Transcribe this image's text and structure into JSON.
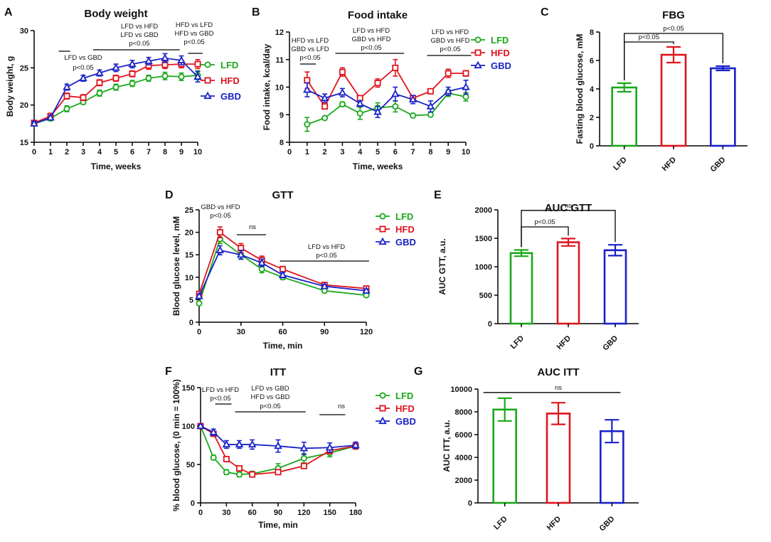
{
  "figure": {
    "colors": {
      "LFD": "#1aa81a",
      "HFD": "#e0141e",
      "GBD": "#1a22c8"
    }
  },
  "chart_data": [
    {
      "id": "A",
      "panel_label": "A",
      "type": "line",
      "title": "Body weight",
      "xlabel": "Time, weeks",
      "ylabel": "Body weight, g",
      "xlim": [
        0,
        10
      ],
      "ylim": [
        15,
        30
      ],
      "xticks": [
        "0",
        "1",
        "2",
        "3",
        "4",
        "5",
        "6",
        "7",
        "8",
        "9",
        "10"
      ],
      "yticks": [
        "15",
        "20",
        "25",
        "30"
      ],
      "ytick_values": [
        15,
        20,
        25,
        30
      ],
      "xtick_values": [
        0,
        1,
        2,
        3,
        4,
        5,
        6,
        7,
        8,
        9,
        10
      ],
      "series": [
        {
          "name": "LFD",
          "x": [
            0,
            1,
            2,
            3,
            4,
            5,
            6,
            7,
            8,
            9,
            10
          ],
          "values": [
            17.5,
            18.2,
            19.5,
            20.4,
            21.6,
            22.4,
            22.9,
            23.6,
            23.9,
            23.8,
            24.0
          ],
          "errors": [
            0.3,
            0.3,
            0.4,
            0.3,
            0.4,
            0.4,
            0.4,
            0.4,
            0.5,
            0.5,
            0.6
          ]
        },
        {
          "name": "HFD",
          "x": [
            0,
            1,
            2,
            3,
            4,
            5,
            6,
            7,
            8,
            9,
            10
          ],
          "values": [
            17.6,
            18.5,
            21.2,
            21.0,
            23.0,
            23.6,
            24.2,
            25.3,
            25.4,
            25.5,
            25.5
          ],
          "errors": [
            0.3,
            0.4,
            0.4,
            0.4,
            0.4,
            0.4,
            0.4,
            0.5,
            0.5,
            0.5,
            0.6
          ]
        },
        {
          "name": "GBD",
          "x": [
            0,
            1,
            2,
            3,
            4,
            5,
            6,
            7,
            8,
            9,
            10
          ],
          "values": [
            17.5,
            18.3,
            22.4,
            23.6,
            24.3,
            25.0,
            25.5,
            25.9,
            26.3,
            26.0,
            23.8
          ],
          "errors": [
            0.3,
            0.3,
            0.4,
            0.4,
            0.4,
            0.5,
            0.5,
            0.5,
            0.6,
            0.6,
            0.7
          ]
        }
      ],
      "annotations": [
        {
          "lines": [
            "LFD vs GBD",
            "p<0.05"
          ],
          "bar_x": [
            1.5,
            2.2
          ]
        },
        {
          "lines": [
            "LFD vs HFD",
            "LFD vs GBD",
            "p<0.05"
          ],
          "bar_x": [
            3.6,
            8.9
          ]
        },
        {
          "lines": [
            "HFD vs LFD",
            "HFD vs GBD",
            "p<0.05"
          ],
          "bar_x": [
            9.4,
            10.3
          ]
        }
      ],
      "legend": [
        "LFD",
        "HFD",
        "GBD"
      ],
      "legend_position": "right"
    },
    {
      "id": "B",
      "panel_label": "B",
      "type": "line",
      "title": "Food intake",
      "xlabel": "Time, weeks",
      "ylabel": "Food intake, kcal/day",
      "xlim": [
        0,
        10
      ],
      "ylim": [
        8,
        12
      ],
      "xticks": [
        "0",
        "1",
        "2",
        "3",
        "4",
        "5",
        "6",
        "7",
        "8",
        "9",
        "10"
      ],
      "yticks": [
        "8",
        "9",
        "10",
        "11",
        "12"
      ],
      "ytick_values": [
        8,
        9,
        10,
        11,
        12
      ],
      "xtick_values": [
        0,
        1,
        2,
        3,
        4,
        5,
        6,
        7,
        8,
        9,
        10
      ],
      "series": [
        {
          "name": "LFD",
          "x": [
            1,
            2,
            3,
            4,
            5,
            6,
            7,
            8,
            9,
            10
          ],
          "values": [
            8.65,
            8.88,
            9.38,
            9.05,
            9.25,
            9.3,
            8.97,
            9.0,
            9.78,
            9.65
          ],
          "errors": [
            0.25,
            0.05,
            0.08,
            0.22,
            0.18,
            0.2,
            0.05,
            0.05,
            0.12,
            0.15
          ]
        },
        {
          "name": "HFD",
          "x": [
            1,
            2,
            3,
            4,
            5,
            6,
            7,
            8,
            9,
            10
          ],
          "values": [
            10.25,
            9.3,
            10.55,
            9.6,
            10.15,
            10.7,
            9.6,
            9.85,
            10.5,
            10.5
          ],
          "errors": [
            0.3,
            0.08,
            0.15,
            0.08,
            0.15,
            0.3,
            0.08,
            0.05,
            0.15,
            0.1
          ]
        },
        {
          "name": "GBD",
          "x": [
            1,
            2,
            3,
            4,
            5,
            6,
            7,
            8,
            9,
            10
          ],
          "values": [
            9.9,
            9.6,
            9.8,
            9.4,
            9.1,
            9.75,
            9.55,
            9.3,
            9.85,
            10.0
          ],
          "errors": [
            0.25,
            0.15,
            0.15,
            0.1,
            0.2,
            0.25,
            0.15,
            0.2,
            0.15,
            0.25
          ]
        }
      ],
      "annotations": [
        {
          "lines": [
            "HFD vs LFD",
            "GBD vs LFD",
            "p<0.05"
          ],
          "bar_x": [
            0.6,
            1.5
          ]
        },
        {
          "lines": [
            "LFD vs HFD",
            "GBD vs HFD",
            "p<0.05"
          ],
          "bar_x": [
            2.6,
            6.5
          ]
        },
        {
          "lines": [
            "LFD vs HFD",
            "GBD vs HFD",
            "p<0.05"
          ],
          "bar_x": [
            7.8,
            10.3
          ]
        }
      ],
      "legend": [
        "LFD",
        "HFD",
        "GBD"
      ],
      "legend_position": "right"
    },
    {
      "id": "C",
      "panel_label": "C",
      "type": "bar",
      "title": "FBG",
      "xlabel": "",
      "ylabel": "Fasting blood glucose, mM",
      "categories": [
        "LFD",
        "HFD",
        "GBD"
      ],
      "values": [
        4.1,
        6.4,
        5.45
      ],
      "errors": [
        0.3,
        0.55,
        0.15
      ],
      "ylim": [
        0,
        8
      ],
      "yticks": [
        "0",
        "2",
        "4",
        "6",
        "8"
      ],
      "ytick_values": [
        0,
        2,
        4,
        6,
        8
      ],
      "brackets": [
        {
          "from": 0,
          "to": 1,
          "label": "p<0.05",
          "level": 7.3
        },
        {
          "from": 0,
          "to": 2,
          "label": "p<0.05",
          "level": 7.9
        }
      ]
    },
    {
      "id": "D",
      "panel_label": "D",
      "type": "line",
      "title": "GTT",
      "xlabel": "Time, min",
      "ylabel": "Blood glucose level, mM",
      "xlim": [
        0,
        120
      ],
      "ylim": [
        0,
        25
      ],
      "xticks": [
        "0",
        "30",
        "60",
        "90",
        "120"
      ],
      "xtick_values": [
        0,
        30,
        60,
        90,
        120
      ],
      "yticks": [
        "0",
        "5",
        "10",
        "15",
        "20",
        "25"
      ],
      "ytick_values": [
        0,
        5,
        10,
        15,
        20,
        25
      ],
      "series": [
        {
          "name": "LFD",
          "x": [
            0,
            15,
            30,
            45,
            60,
            90,
            120
          ],
          "values": [
            4.2,
            18.5,
            15.0,
            11.8,
            10.0,
            7.0,
            6.0
          ],
          "errors": [
            0.4,
            1.0,
            0.9,
            0.8,
            0.5,
            0.3,
            0.3
          ]
        },
        {
          "name": "HFD",
          "x": [
            0,
            15,
            30,
            45,
            60,
            90,
            120
          ],
          "values": [
            6.3,
            20.0,
            16.5,
            13.8,
            11.8,
            8.3,
            7.5
          ],
          "errors": [
            0.5,
            1.2,
            1.0,
            0.9,
            0.6,
            0.4,
            0.4
          ]
        },
        {
          "name": "GBD",
          "x": [
            0,
            15,
            30,
            45,
            60,
            90,
            120
          ],
          "values": [
            5.8,
            16.0,
            15.0,
            13.2,
            10.5,
            8.0,
            7.0
          ],
          "errors": [
            0.5,
            1.0,
            1.0,
            0.8,
            0.6,
            0.4,
            0.4
          ]
        }
      ],
      "annotations": [
        {
          "lines": [
            "GBD vs HFD",
            "p<0.05"
          ],
          "bar_x": null
        },
        {
          "lines": [
            "ns"
          ],
          "bar_x": [
            27,
            48
          ]
        },
        {
          "lines": [
            "LFD vs HFD",
            "p<0.05"
          ],
          "bar_x": [
            58,
            122
          ]
        }
      ],
      "legend": [
        "LFD",
        "HFD",
        "GBD"
      ],
      "legend_position": "right"
    },
    {
      "id": "E",
      "panel_label": "E",
      "type": "bar",
      "title": "AUC GTT",
      "xlabel": "",
      "ylabel": "AUC GTT, a.u.",
      "categories": [
        "LFD",
        "HFD",
        "GBD"
      ],
      "values": [
        1240,
        1430,
        1290
      ],
      "errors": [
        55,
        65,
        95
      ],
      "ylim": [
        0,
        2000
      ],
      "yticks": [
        "0",
        "500",
        "1000",
        "1500",
        "2000"
      ],
      "ytick_values": [
        0,
        500,
        1000,
        1500,
        2000
      ],
      "brackets": [
        {
          "from": 0,
          "to": 1,
          "label": "p<0.05",
          "level": 1700
        },
        {
          "from": 0,
          "to": 2,
          "label": "ns",
          "level": 1990
        }
      ]
    },
    {
      "id": "F",
      "panel_label": "F",
      "type": "line",
      "title": "ITT",
      "xlabel": "Time, min",
      "ylabel": "% blood glucose, (0 min = 100%)",
      "xlim": [
        0,
        180
      ],
      "ylim": [
        0,
        150
      ],
      "xticks": [
        "0",
        "30",
        "60",
        "90",
        "120",
        "150",
        "180"
      ],
      "xtick_values": [
        0,
        30,
        60,
        90,
        120,
        150,
        180
      ],
      "yticks": [
        "0",
        "50",
        "100",
        "150"
      ],
      "ytick_values": [
        0,
        50,
        100,
        150
      ],
      "series": [
        {
          "name": "LFD",
          "x": [
            0,
            15,
            30,
            45,
            60,
            90,
            120,
            150,
            180
          ],
          "values": [
            100,
            59,
            40,
            37,
            38,
            45,
            58,
            65,
            74
          ],
          "errors": [
            2,
            3,
            3,
            3,
            3,
            6,
            6,
            5,
            4
          ]
        },
        {
          "name": "HFD",
          "x": [
            0,
            15,
            30,
            45,
            60,
            90,
            120,
            150,
            180
          ],
          "values": [
            100,
            90,
            57,
            45,
            37,
            40,
            48,
            68,
            74
          ],
          "errors": [
            2,
            3,
            3,
            3,
            3,
            3,
            3,
            4,
            4
          ]
        },
        {
          "name": "GBD",
          "x": [
            0,
            15,
            30,
            45,
            60,
            90,
            120,
            150,
            180
          ],
          "values": [
            100,
            92,
            76,
            76,
            76,
            74,
            71,
            72,
            75
          ],
          "errors": [
            2,
            4,
            5,
            5,
            6,
            8,
            8,
            6,
            4
          ]
        }
      ],
      "annotations": [
        {
          "lines": [
            "LFD vs HFD",
            "p<0.05"
          ],
          "bar_x": [
            17,
            36
          ]
        },
        {
          "lines": [
            "LFD vs GBD",
            "HFD vs GBD",
            "p<0.05"
          ],
          "bar_x": [
            40,
            122
          ]
        },
        {
          "lines": [
            "ns"
          ],
          "bar_x": [
            138,
            168
          ]
        }
      ],
      "legend": [
        "LFD",
        "HFD",
        "GBD"
      ],
      "legend_position": "right"
    },
    {
      "id": "G",
      "panel_label": "G",
      "type": "bar",
      "title": "AUC ITT",
      "xlabel": "",
      "ylabel": "AUC ITT, a.u.",
      "categories": [
        "LFD",
        "HFD",
        "GBD"
      ],
      "values": [
        8200,
        7850,
        6300
      ],
      "errors": [
        1000,
        950,
        1000
      ],
      "ylim": [
        0,
        10000
      ],
      "yticks": [
        "0",
        "2000",
        "4000",
        "6000",
        "8000",
        "10000"
      ],
      "ytick_values": [
        0,
        2000,
        4000,
        6000,
        8000,
        10000
      ],
      "brackets": [
        {
          "from": 0,
          "to": 2,
          "label": "ns",
          "level": 9700,
          "flat": true
        }
      ]
    }
  ]
}
